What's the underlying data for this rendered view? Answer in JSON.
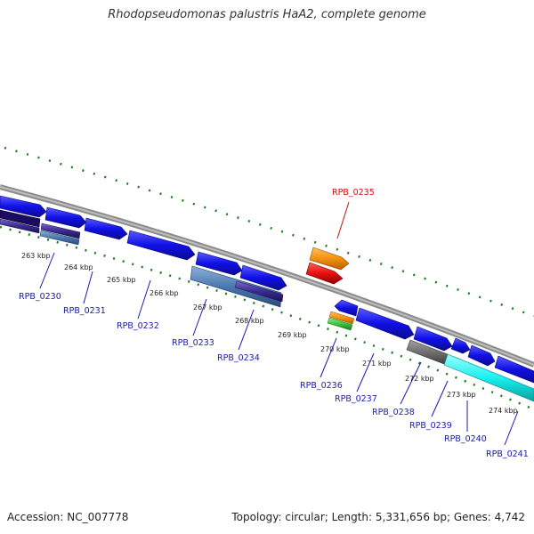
{
  "title": "Rhodopseudomonas palustris HaA2, complete genome",
  "accession": "Accession: NC_007778",
  "summary": "Topology: circular; Length: 5,331,656 bp; Genes: 4,742",
  "colors": {
    "backbone": "#8c8c8c",
    "gene_blue": "#1010e6",
    "gene_orange": "#f5900f",
    "gene_red": "#e81010",
    "gene_green": "#3cc43c",
    "gene_gray": "#707070",
    "gene_cyan": "#19f0f0",
    "label_blue": "#1a1aa8",
    "label_red": "#cc1010",
    "ticks_green": "#1d7d1d"
  },
  "kbp_ticks": [
    "263 kbp",
    "264 kbp",
    "265 kbp",
    "266 kbp",
    "267 kbp",
    "268 kbp",
    "269 kbp",
    "270 kbp",
    "271 kbp",
    "272 kbp",
    "273 kbp",
    "274 kbp"
  ],
  "gene_labels": [
    "RPB_0230",
    "RPB_0231",
    "RPB_0232",
    "RPB_0233",
    "RPB_0234",
    "RPB_0235",
    "RPB_0236",
    "RPB_0237",
    "RPB_0238",
    "RPB_0239",
    "RPB_0240",
    "RPB_0241"
  ]
}
